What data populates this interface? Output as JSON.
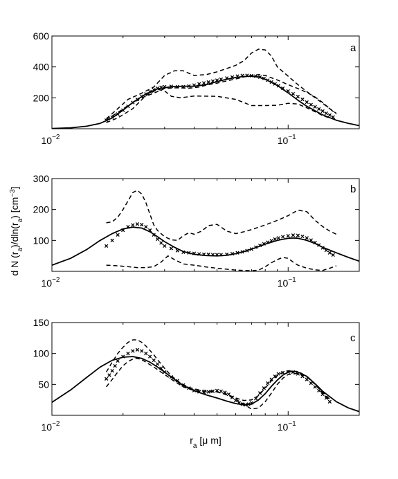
{
  "figure": {
    "ylabel": "d N (r_a)/dln(r_a) [cm^-3]",
    "xlabel": "r_a [μ m]"
  },
  "chart_data": [
    {
      "type": "line",
      "panel": "a",
      "x_scale": "log",
      "xlim": [
        0.01,
        0.2
      ],
      "ylim": [
        0,
        600
      ],
      "xticks": [
        0.01,
        0.1
      ],
      "yticks": [
        200,
        400,
        600
      ],
      "ytick_labels": [
        "200",
        "400",
        "600"
      ],
      "series": [
        {
          "style": "solid",
          "x": [
            0.01,
            0.012,
            0.014,
            0.016,
            0.018,
            0.02,
            0.022,
            0.025,
            0.028,
            0.032,
            0.036,
            0.04,
            0.045,
            0.05,
            0.055,
            0.06,
            0.065,
            0.07,
            0.075,
            0.08,
            0.09,
            0.1,
            0.11,
            0.12,
            0.14,
            0.16,
            0.18,
            0.2
          ],
          "y": [
            2,
            6,
            16,
            35,
            70,
            120,
            170,
            225,
            258,
            272,
            275,
            275,
            285,
            305,
            320,
            332,
            338,
            340,
            335,
            320,
            280,
            232,
            185,
            145,
            90,
            55,
            35,
            20
          ]
        },
        {
          "style": "markers",
          "x": [
            0.017,
            0.018,
            0.019,
            0.02,
            0.021,
            0.022,
            0.023,
            0.024,
            0.025,
            0.026,
            0.027,
            0.028,
            0.029,
            0.03,
            0.032,
            0.034,
            0.036,
            0.038,
            0.04,
            0.042,
            0.044,
            0.046,
            0.048,
            0.05,
            0.052,
            0.055,
            0.058,
            0.061,
            0.064,
            0.067,
            0.07,
            0.073,
            0.076,
            0.079,
            0.082,
            0.085,
            0.088,
            0.091,
            0.095,
            0.1,
            0.105,
            0.11,
            0.115,
            0.12,
            0.125,
            0.13,
            0.135,
            0.14,
            0.145,
            0.15,
            0.155
          ],
          "y": [
            55,
            75,
            95,
            120,
            145,
            170,
            190,
            210,
            225,
            240,
            252,
            262,
            268,
            272,
            274,
            272,
            272,
            276,
            282,
            290,
            296,
            302,
            308,
            314,
            320,
            328,
            334,
            340,
            344,
            345,
            343,
            340,
            334,
            325,
            314,
            302,
            290,
            278,
            262,
            244,
            226,
            208,
            190,
            172,
            156,
            142,
            128,
            114,
            100,
            88,
            76
          ]
        },
        {
          "style": "dashed",
          "x": [
            0.017,
            0.019,
            0.021,
            0.024,
            0.027,
            0.03,
            0.033,
            0.036,
            0.04,
            0.045,
            0.05,
            0.055,
            0.06,
            0.065,
            0.07,
            0.075,
            0.08,
            0.085,
            0.09,
            0.1,
            0.11,
            0.12,
            0.13,
            0.14,
            0.15,
            0.16
          ],
          "y": [
            65,
            130,
            190,
            230,
            270,
            345,
            375,
            375,
            345,
            350,
            368,
            390,
            410,
            440,
            490,
            515,
            510,
            470,
            400,
            340,
            285,
            240,
            200,
            165,
            130,
            100
          ]
        },
        {
          "style": "dashed",
          "x": [
            0.017,
            0.019,
            0.022,
            0.025,
            0.028,
            0.03,
            0.032,
            0.035,
            0.04,
            0.05,
            0.06,
            0.07,
            0.08,
            0.09,
            0.1,
            0.11,
            0.12,
            0.13,
            0.14,
            0.15,
            0.16
          ],
          "y": [
            40,
            70,
            130,
            215,
            255,
            245,
            210,
            200,
            212,
            210,
            190,
            150,
            150,
            152,
            165,
            160,
            135,
            110,
            85,
            70,
            60
          ]
        },
        {
          "style": "dashed",
          "x": [
            0.017,
            0.019,
            0.021,
            0.024,
            0.027,
            0.03,
            0.034,
            0.038,
            0.042,
            0.046,
            0.05,
            0.055,
            0.06,
            0.065,
            0.07,
            0.075,
            0.08,
            0.09,
            0.1,
            0.11,
            0.12,
            0.13,
            0.14,
            0.15,
            0.16
          ],
          "y": [
            60,
            105,
            150,
            200,
            230,
            260,
            265,
            262,
            270,
            285,
            295,
            310,
            322,
            335,
            345,
            350,
            345,
            315,
            285,
            260,
            235,
            205,
            170,
            130,
            95
          ]
        }
      ]
    },
    {
      "type": "line",
      "panel": "b",
      "x_scale": "log",
      "xlim": [
        0.01,
        0.2
      ],
      "ylim": [
        0,
        300
      ],
      "xticks": [
        0.01,
        0.1
      ],
      "yticks": [
        100,
        200,
        300
      ],
      "ytick_labels": [
        "100",
        "200",
        "300"
      ],
      "series": [
        {
          "style": "solid",
          "x": [
            0.01,
            0.012,
            0.014,
            0.016,
            0.018,
            0.02,
            0.022,
            0.024,
            0.026,
            0.028,
            0.03,
            0.033,
            0.036,
            0.04,
            0.045,
            0.05,
            0.055,
            0.06,
            0.065,
            0.07,
            0.075,
            0.08,
            0.09,
            0.1,
            0.105,
            0.11,
            0.12,
            0.13,
            0.14,
            0.16,
            0.18,
            0.2
          ],
          "y": [
            20,
            42,
            70,
            100,
            122,
            137,
            143,
            140,
            128,
            112,
            96,
            78,
            64,
            55,
            51,
            50,
            52,
            57,
            64,
            72,
            80,
            88,
            100,
            107,
            108,
            107,
            100,
            90,
            78,
            60,
            45,
            33
          ]
        },
        {
          "style": "markers",
          "x": [
            0.017,
            0.018,
            0.019,
            0.02,
            0.021,
            0.022,
            0.023,
            0.024,
            0.025,
            0.026,
            0.027,
            0.028,
            0.029,
            0.03,
            0.032,
            0.034,
            0.036,
            0.038,
            0.04,
            0.042,
            0.044,
            0.046,
            0.048,
            0.05,
            0.052,
            0.055,
            0.058,
            0.061,
            0.064,
            0.067,
            0.07,
            0.073,
            0.076,
            0.079,
            0.082,
            0.085,
            0.088,
            0.091,
            0.095,
            0.1,
            0.105,
            0.11,
            0.115,
            0.12,
            0.125,
            0.13,
            0.135,
            0.14,
            0.145,
            0.15,
            0.155
          ],
          "y": [
            82,
            100,
            118,
            133,
            144,
            150,
            153,
            151,
            144,
            133,
            118,
            104,
            92,
            82,
            74,
            67,
            62,
            60,
            58,
            56,
            55,
            55,
            54,
            54,
            54,
            55,
            57,
            60,
            63,
            67,
            72,
            78,
            84,
            89,
            94,
            99,
            104,
            108,
            112,
            115,
            117,
            116,
            113,
            108,
            101,
            93,
            85,
            76,
            68,
            60,
            53
          ]
        },
        {
          "style": "dashed",
          "x": [
            0.017,
            0.018,
            0.019,
            0.02,
            0.021,
            0.022,
            0.023,
            0.024,
            0.025,
            0.026,
            0.027,
            0.028,
            0.03,
            0.032,
            0.034,
            0.036,
            0.038,
            0.04,
            0.043,
            0.046,
            0.05,
            0.055,
            0.06,
            0.065,
            0.07,
            0.08,
            0.09,
            0.1,
            0.11,
            0.12,
            0.13,
            0.14,
            0.15,
            0.16
          ],
          "y": [
            157,
            160,
            175,
            200,
            228,
            255,
            262,
            250,
            222,
            185,
            150,
            132,
            112,
            102,
            100,
            115,
            125,
            120,
            130,
            148,
            152,
            130,
            122,
            128,
            135,
            150,
            165,
            180,
            198,
            193,
            165,
            145,
            130,
            120
          ]
        },
        {
          "style": "dashed",
          "x": [
            0.017,
            0.019,
            0.021,
            0.023,
            0.025,
            0.027,
            0.029,
            0.031,
            0.033,
            0.036,
            0.04,
            0.045,
            0.05,
            0.055,
            0.06,
            0.065,
            0.07,
            0.075,
            0.08,
            0.085,
            0.09,
            0.095,
            0.1,
            0.105,
            0.11,
            0.12,
            0.13,
            0.14,
            0.15,
            0.16
          ],
          "y": [
            20,
            18,
            15,
            12,
            12,
            15,
            30,
            50,
            38,
            24,
            20,
            14,
            10,
            7,
            4,
            3,
            2,
            4,
            15,
            28,
            38,
            45,
            42,
            30,
            20,
            10,
            5,
            3,
            10,
            18
          ]
        }
      ]
    },
    {
      "type": "line",
      "panel": "c",
      "x_scale": "log",
      "xlim": [
        0.01,
        0.2
      ],
      "ylim": [
        0,
        150
      ],
      "xticks": [
        0.01,
        0.1
      ],
      "yticks": [
        50,
        100,
        150
      ],
      "ytick_labels": [
        "50",
        "100",
        "150"
      ],
      "series": [
        {
          "style": "solid",
          "x": [
            0.01,
            0.012,
            0.014,
            0.016,
            0.018,
            0.02,
            0.022,
            0.024,
            0.026,
            0.028,
            0.03,
            0.033,
            0.036,
            0.04,
            0.045,
            0.05,
            0.055,
            0.06,
            0.065,
            0.07,
            0.075,
            0.08,
            0.085,
            0.09,
            0.095,
            0.1,
            0.105,
            0.11,
            0.12,
            0.13,
            0.14,
            0.16,
            0.18,
            0.2
          ],
          "y": [
            21,
            41,
            61,
            78,
            89,
            94,
            95,
            92,
            86,
            78,
            70,
            58,
            48,
            40,
            33,
            28,
            23,
            19,
            17,
            18,
            25,
            35,
            47,
            57,
            65,
            70,
            71,
            70,
            63,
            51,
            39,
            22,
            12,
            6
          ]
        },
        {
          "style": "markers",
          "x": [
            0.017,
            0.0175,
            0.018,
            0.0185,
            0.019,
            0.02,
            0.021,
            0.022,
            0.023,
            0.024,
            0.025,
            0.026,
            0.027,
            0.028,
            0.029,
            0.03,
            0.032,
            0.034,
            0.036,
            0.038,
            0.04,
            0.042,
            0.044,
            0.046,
            0.048,
            0.05,
            0.052,
            0.054,
            0.056,
            0.058,
            0.06,
            0.062,
            0.064,
            0.066,
            0.068,
            0.07,
            0.073,
            0.076,
            0.079,
            0.082,
            0.085,
            0.088,
            0.091,
            0.095,
            0.1,
            0.105,
            0.11,
            0.115,
            0.12,
            0.125,
            0.13,
            0.135,
            0.14,
            0.145,
            0.15
          ],
          "y": [
            59,
            65,
            72,
            80,
            88,
            95,
            100,
            104,
            106,
            104,
            100,
            95,
            89,
            83,
            76,
            70,
            62,
            56,
            49,
            44,
            40,
            38,
            37,
            38,
            39,
            40,
            39,
            37,
            34,
            29,
            24,
            20,
            18,
            17,
            18,
            20,
            27,
            36,
            44,
            52,
            58,
            63,
            67,
            69,
            70,
            70,
            67,
            63,
            58,
            52,
            46,
            40,
            34,
            28,
            22
          ]
        },
        {
          "style": "dashed",
          "x": [
            0.017,
            0.018,
            0.019,
            0.02,
            0.021,
            0.022,
            0.023,
            0.024,
            0.025,
            0.026,
            0.027,
            0.028,
            0.03,
            0.032,
            0.035,
            0.038,
            0.042,
            0.046,
            0.05,
            0.055,
            0.06,
            0.065,
            0.07,
            0.075,
            0.08,
            0.085,
            0.09,
            0.095,
            0.1,
            0.11,
            0.12,
            0.13,
            0.14,
            0.15
          ],
          "y": [
            70,
            86,
            100,
            110,
            118,
            122,
            122,
            118,
            112,
            105,
            98,
            90,
            76,
            64,
            52,
            45,
            41,
            40,
            38,
            34,
            28,
            24,
            25,
            32,
            44,
            56,
            64,
            70,
            72,
            71,
            63,
            50,
            36,
            24
          ]
        },
        {
          "style": "dashed",
          "x": [
            0.017,
            0.018,
            0.019,
            0.02,
            0.021,
            0.022,
            0.023,
            0.024,
            0.025,
            0.027,
            0.03,
            0.033,
            0.036,
            0.04,
            0.045,
            0.05,
            0.055,
            0.06,
            0.065,
            0.07,
            0.075,
            0.08,
            0.085,
            0.09,
            0.095,
            0.1,
            0.11,
            0.12,
            0.13,
            0.14,
            0.15
          ],
          "y": [
            46,
            58,
            70,
            80,
            87,
            91,
            92,
            90,
            86,
            78,
            66,
            55,
            46,
            40,
            38,
            38,
            33,
            26,
            18,
            10,
            12,
            22,
            36,
            50,
            60,
            66,
            68,
            62,
            50,
            38,
            26
          ]
        }
      ]
    }
  ]
}
